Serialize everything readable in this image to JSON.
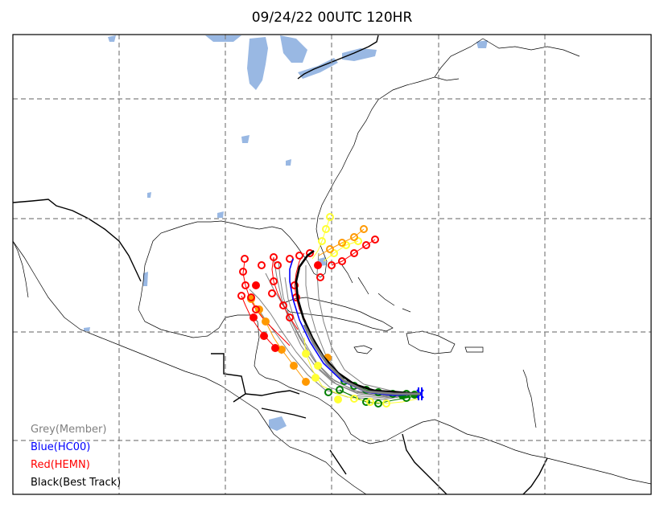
{
  "title": "09/24/22 00UTC 120HR",
  "legend": [
    {
      "label": "Grey(Member)",
      "color": "#808080"
    },
    {
      "label": "Blue(HC00)",
      "color": "#0000ff"
    },
    {
      "label": "Red(HEMN)",
      "color": "#ff0000"
    },
    {
      "label": "Black(Best Track)",
      "color": "#000000"
    }
  ],
  "colors": {
    "water": "#99b8e3",
    "grid": "#808080",
    "member": "#808080",
    "hc00": "#0000ff",
    "hemn": "#ff0000",
    "best_track": "#000000",
    "marker_green": "#008000",
    "marker_yellow": "#ffff33",
    "marker_orange": "#ff9900",
    "marker_red": "#ff0000"
  }
}
